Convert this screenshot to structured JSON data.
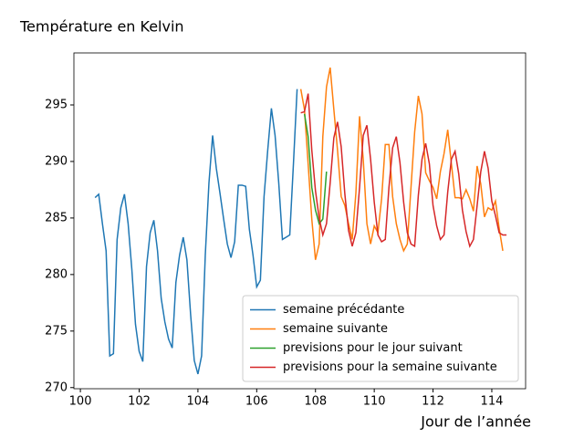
{
  "chart_data": {
    "type": "line",
    "title": "Température en Kelvin",
    "x_label": "Jour de l’année",
    "xlim": [
      99.78,
      115.15
    ],
    "ylim": [
      269.9,
      299.6
    ],
    "xticks": [
      100,
      102,
      104,
      106,
      108,
      110,
      112,
      114
    ],
    "yticks": [
      270,
      275,
      280,
      285,
      290,
      295
    ],
    "grid": false,
    "legend": "lower right",
    "series": [
      {
        "name": "semaine précédante",
        "color": "#1f77b4",
        "x": [
          100.5,
          100.625,
          100.75,
          100.875,
          101,
          101.125,
          101.25,
          101.375,
          101.5,
          101.625,
          101.75,
          101.875,
          102,
          102.125,
          102.25,
          102.375,
          102.5,
          102.625,
          102.75,
          102.875,
          103,
          103.125,
          103.25,
          103.375,
          103.5,
          103.625,
          103.75,
          103.875,
          104,
          104.125,
          104.25,
          104.375,
          104.5,
          104.625,
          104.75,
          104.875,
          105,
          105.125,
          105.25,
          105.375,
          105.5,
          105.625,
          105.75,
          105.875,
          106,
          106.125,
          106.25,
          106.375,
          106.5,
          106.625,
          106.75,
          106.875,
          107,
          107.125,
          107.25,
          107.375
        ],
        "values": [
          286.8,
          287.1,
          284.5,
          282.1,
          272.8,
          273.0,
          283.1,
          285.9,
          287.1,
          284.5,
          280.5,
          275.6,
          273.2,
          272.3,
          280.7,
          283.7,
          284.8,
          282.1,
          277.9,
          275.8,
          274.3,
          273.5,
          279.3,
          281.7,
          283.3,
          281.3,
          276.5,
          272.4,
          271.2,
          272.8,
          281.7,
          288.1,
          292.3,
          289.4,
          287.2,
          284.9,
          282.7,
          281.5,
          282.9,
          287.9,
          287.9,
          287.8,
          284.0,
          281.7,
          278.9,
          279.5,
          286.9,
          291.0,
          294.7,
          292.3,
          288.1,
          283.1,
          283.3,
          283.5,
          289.8,
          296.4
        ]
      },
      {
        "name": "semaine suivante",
        "color": "#ff7f0e",
        "x": [
          107.5,
          107.625,
          107.75,
          107.875,
          108,
          108.125,
          108.25,
          108.375,
          108.5,
          108.625,
          108.75,
          108.875,
          109,
          109.125,
          109.25,
          109.375,
          109.5,
          109.625,
          109.75,
          109.875,
          110,
          110.125,
          110.25,
          110.375,
          110.5,
          110.625,
          110.75,
          110.875,
          111,
          111.125,
          111.25,
          111.375,
          111.5,
          111.625,
          111.75,
          111.875,
          112,
          112.125,
          112.25,
          112.375,
          112.5,
          112.625,
          112.75,
          112.875,
          113,
          113.125,
          113.25,
          113.375,
          113.5,
          113.625,
          113.75,
          113.875,
          114,
          114.125,
          114.25,
          114.375
        ],
        "values": [
          296.4,
          294.6,
          289.8,
          284.9,
          281.3,
          282.7,
          292.2,
          296.6,
          298.3,
          294.6,
          291.0,
          286.9,
          286.1,
          284.5,
          283.1,
          287.2,
          294.0,
          290.2,
          284.5,
          282.7,
          284.3,
          283.7,
          286.7,
          291.5,
          291.5,
          286.9,
          284.5,
          283.1,
          282.1,
          282.7,
          287.7,
          292.6,
          295.8,
          294.2,
          289.0,
          288.3,
          287.7,
          286.7,
          289.1,
          290.7,
          292.8,
          289.8,
          286.8,
          286.8,
          286.7,
          287.5,
          286.7,
          285.6,
          289.6,
          288.0,
          285.1,
          285.9,
          285.7,
          286.5,
          284.1,
          282.1
        ]
      },
      {
        "name": "previsions pour le jour suivant",
        "color": "#2ca02c",
        "x": [
          107.625,
          107.75,
          107.875,
          108,
          108.125,
          108.25,
          108.375
        ],
        "values": [
          294.2,
          292.2,
          287.7,
          285.7,
          284.5,
          284.9,
          289.1
        ]
      },
      {
        "name": "previsions pour la semaine suivante",
        "color": "#d62728",
        "x": [
          107.5,
          107.625,
          107.75,
          107.875,
          108,
          108.125,
          108.25,
          108.375,
          108.5,
          108.625,
          108.75,
          108.875,
          109,
          109.125,
          109.25,
          109.375,
          109.5,
          109.625,
          109.75,
          109.875,
          110,
          110.125,
          110.25,
          110.375,
          110.5,
          110.625,
          110.75,
          110.875,
          111,
          111.125,
          111.25,
          111.375,
          111.5,
          111.625,
          111.75,
          111.875,
          112,
          112.125,
          112.25,
          112.375,
          112.5,
          112.625,
          112.75,
          112.875,
          113,
          113.125,
          113.25,
          113.375,
          113.5,
          113.625,
          113.75,
          113.875,
          114,
          114.125,
          114.25,
          114.375,
          114.5
        ],
        "values": [
          294.3,
          294.4,
          296.0,
          291.0,
          287.4,
          285.0,
          283.5,
          284.5,
          288.1,
          292.1,
          293.5,
          291.3,
          287.1,
          283.9,
          282.5,
          283.7,
          287.7,
          292.3,
          293.2,
          290.2,
          286.4,
          283.5,
          282.9,
          283.1,
          287.7,
          291.2,
          292.2,
          289.9,
          286.4,
          283.7,
          282.7,
          282.5,
          287.0,
          290.2,
          291.6,
          289.8,
          286.1,
          284.3,
          283.1,
          283.5,
          287.3,
          290.2,
          290.9,
          288.9,
          285.7,
          283.8,
          282.5,
          283.1,
          286.1,
          289.1,
          290.9,
          289.4,
          286.5,
          285.2,
          283.7,
          283.5,
          283.5
        ]
      }
    ]
  }
}
